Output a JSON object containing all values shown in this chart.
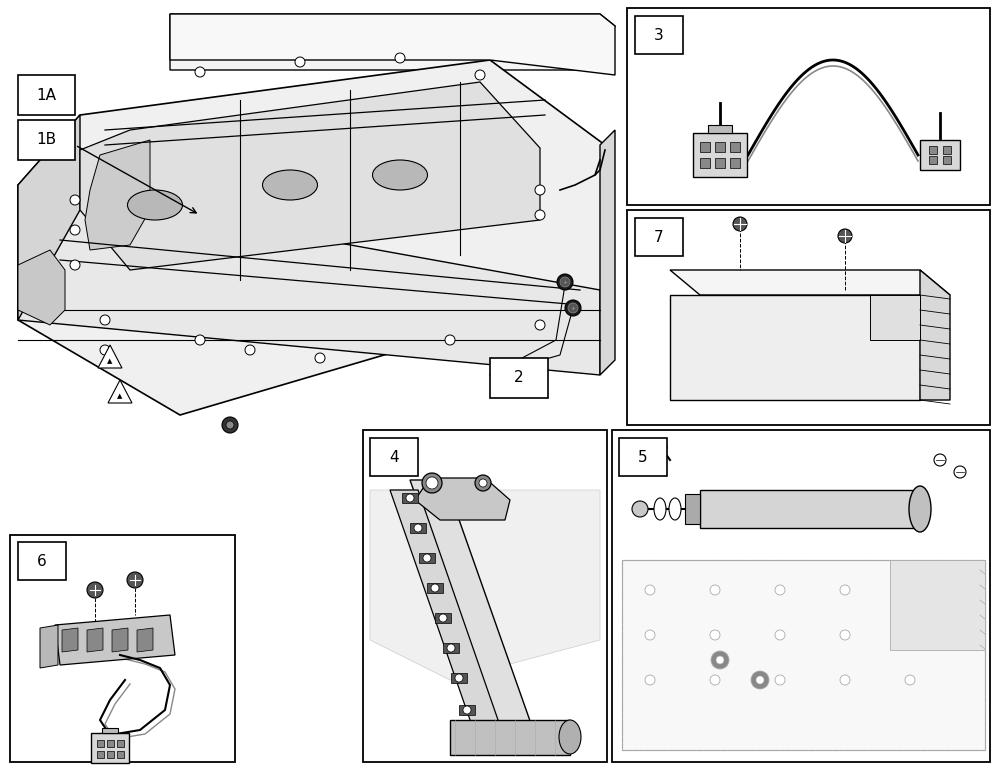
{
  "figsize": [
    10.0,
    7.72
  ],
  "dpi": 100,
  "bg": "#ffffff",
  "lc": "#000000",
  "lg": "#aaaaaa",
  "panels": {
    "3": [
      627,
      8,
      990,
      205
    ],
    "7": [
      627,
      210,
      990,
      425
    ],
    "4": [
      363,
      430,
      607,
      762
    ],
    "5": [
      612,
      430,
      990,
      762
    ],
    "6": [
      10,
      535,
      235,
      762
    ]
  },
  "label_boxes": {
    "1A": [
      18,
      75,
      75,
      115
    ],
    "1B": [
      18,
      120,
      75,
      160
    ],
    "2": [
      490,
      360,
      560,
      400
    ],
    "3": [
      635,
      16,
      685,
      56
    ],
    "4": [
      370,
      438,
      420,
      478
    ],
    "5": [
      619,
      438,
      669,
      478
    ],
    "6": [
      18,
      542,
      68,
      582
    ],
    "7": [
      635,
      218,
      685,
      258
    ]
  }
}
